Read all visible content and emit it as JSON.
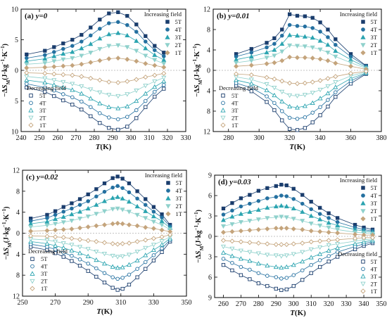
{
  "figure": {
    "x_axis_label": "T(K)",
    "y_axis_label": "−ΔS_M(J·kg⁻¹·K⁻¹)"
  },
  "colors": {
    "5T": "#1a3d6d",
    "4T": "#2470a0",
    "3T": "#2ba4b0",
    "2T": "#8fd1cc",
    "1T": "#c4a47c",
    "frame": "#000000",
    "zero_line": "#b0b0b0"
  },
  "chart_data": [
    {
      "panel": "(a)",
      "y_value": "y=0",
      "type": "scatter",
      "xlabel": "T(K)",
      "ylabel": "−ΔS_M(J·kg⁻¹·K⁻¹)",
      "xlim": [
        240,
        330
      ],
      "ylim_top": 10,
      "ylim_bottom": 10,
      "xticks": [
        240,
        250,
        260,
        270,
        280,
        290,
        300,
        310,
        320,
        330
      ],
      "yticks_top": [
        5,
        10
      ],
      "yticks_bottom": [
        0,
        5,
        10
      ],
      "increasing_legend_title": "Increasing field",
      "decreasing_legend_title": "Decreasing field",
      "legend_labels": [
        "5T",
        "4T",
        "3T",
        "2T",
        "1T"
      ],
      "increasing_x": [
        243,
        253,
        258,
        263,
        268,
        273,
        278,
        283,
        288,
        293,
        298,
        303,
        308,
        313,
        318
      ],
      "increasing": [
        {
          "name": "5T",
          "values": [
            2.6,
            3.2,
            3.8,
            4.4,
            5.0,
            5.8,
            7.0,
            8.3,
            9.3,
            9.5,
            8.9,
            7.5,
            5.6,
            4.0,
            2.9
          ]
        },
        {
          "name": "4T",
          "values": [
            2.0,
            2.5,
            3.0,
            3.5,
            4.0,
            4.7,
            5.7,
            6.8,
            7.7,
            7.9,
            7.4,
            6.3,
            4.7,
            3.3,
            2.3
          ]
        },
        {
          "name": "3T",
          "values": [
            1.5,
            1.9,
            2.3,
            2.7,
            3.0,
            3.6,
            4.3,
            5.2,
            5.9,
            6.1,
            5.7,
            4.8,
            3.6,
            2.5,
            1.7
          ]
        },
        {
          "name": "2T",
          "values": [
            1.0,
            1.2,
            1.5,
            1.8,
            2.0,
            2.4,
            2.9,
            3.5,
            4.0,
            4.1,
            3.8,
            3.2,
            2.4,
            1.7,
            1.1
          ]
        },
        {
          "name": "1T",
          "values": [
            0.4,
            0.5,
            0.6,
            0.7,
            0.8,
            1.0,
            1.3,
            1.6,
            1.9,
            2.0,
            1.8,
            1.5,
            1.1,
            0.8,
            0.5
          ]
        }
      ],
      "decreasing_x": [
        243,
        253,
        258,
        263,
        268,
        273,
        278,
        283,
        288,
        293,
        298,
        303,
        308,
        313,
        318
      ],
      "decreasing": [
        {
          "name": "5T",
          "values": [
            -2.8,
            -3.5,
            -4.2,
            -4.9,
            -5.6,
            -6.4,
            -7.5,
            -8.6,
            -9.4,
            -9.7,
            -9.2,
            -7.8,
            -6.0,
            -4.3,
            -3.0
          ]
        },
        {
          "name": "4T",
          "values": [
            -2.2,
            -2.8,
            -3.3,
            -3.9,
            -4.4,
            -5.1,
            -6.0,
            -7.0,
            -7.7,
            -8.0,
            -7.6,
            -6.5,
            -5.0,
            -3.5,
            -2.4
          ]
        },
        {
          "name": "3T",
          "values": [
            -1.6,
            -2.0,
            -2.4,
            -2.8,
            -3.2,
            -3.8,
            -4.6,
            -5.4,
            -6.0,
            -6.2,
            -5.9,
            -5.0,
            -3.8,
            -2.7,
            -1.8
          ]
        },
        {
          "name": "2T",
          "values": [
            -1.0,
            -1.3,
            -1.6,
            -1.9,
            -2.2,
            -2.6,
            -3.1,
            -3.6,
            -4.0,
            -4.2,
            -3.9,
            -3.3,
            -2.5,
            -1.8,
            -1.2
          ]
        },
        {
          "name": "1T",
          "values": [
            -0.4,
            -0.5,
            -0.6,
            -0.7,
            -0.8,
            -1.0,
            -1.3,
            -1.6,
            -1.9,
            -2.0,
            -1.8,
            -1.5,
            -1.1,
            -0.8,
            -0.5
          ]
        }
      ]
    },
    {
      "panel": "(b)",
      "y_value": "y=0.01",
      "type": "scatter",
      "xlabel": "T(K)",
      "ylabel": "−ΔS_M(J·kg⁻¹·K⁻¹)",
      "xlim": [
        270,
        380
      ],
      "ylim_top": 12,
      "ylim_bottom": 12,
      "xticks": [
        280,
        300,
        320,
        340,
        360,
        380
      ],
      "yticks_top": [
        4,
        8,
        12
      ],
      "yticks_bottom": [
        0,
        4,
        8,
        12
      ],
      "increasing_legend_title": "Increasing field",
      "decreasing_legend_title": "Decreasing field",
      "legend_labels": [
        "5T",
        "4T",
        "3T",
        "2T",
        "1T"
      ],
      "increasing_x": [
        285,
        295,
        305,
        310,
        315,
        320,
        325,
        330,
        335,
        340,
        345,
        350,
        360,
        370
      ],
      "increasing": [
        {
          "name": "5T",
          "values": [
            3.2,
            4.2,
            5.4,
            6.3,
            8.0,
            11.0,
            10.7,
            10.6,
            10.3,
            9.4,
            8.0,
            6.1,
            3.2,
            0.9
          ]
        },
        {
          "name": "4T",
          "values": [
            2.7,
            3.5,
            4.5,
            5.2,
            6.8,
            8.9,
            8.7,
            8.6,
            8.3,
            7.6,
            6.5,
            5.0,
            2.7,
            0.8
          ]
        },
        {
          "name": "3T",
          "values": [
            2.1,
            2.7,
            3.5,
            4.0,
            5.2,
            6.9,
            6.8,
            6.6,
            6.4,
            5.8,
            5.0,
            3.8,
            2.1,
            0.6
          ]
        },
        {
          "name": "2T",
          "values": [
            1.5,
            1.9,
            2.5,
            2.9,
            3.7,
            4.9,
            4.8,
            4.7,
            4.5,
            4.1,
            3.5,
            2.7,
            1.5,
            0.4
          ]
        },
        {
          "name": "1T",
          "values": [
            0.8,
            1.0,
            1.3,
            1.5,
            1.9,
            2.6,
            2.5,
            2.5,
            2.4,
            2.2,
            1.9,
            1.4,
            0.8,
            0.2
          ]
        }
      ],
      "decreasing_x": [
        285,
        295,
        305,
        310,
        315,
        320,
        325,
        330,
        335,
        340,
        345,
        350,
        360,
        370
      ],
      "decreasing": [
        {
          "name": "5T",
          "values": [
            -3.0,
            -4.1,
            -6.2,
            -7.8,
            -9.8,
            -11.5,
            -11.7,
            -11.3,
            -10.2,
            -8.8,
            -7.1,
            -5.2,
            -2.6,
            -0.7
          ]
        },
        {
          "name": "4T",
          "values": [
            -2.5,
            -3.4,
            -5.1,
            -6.4,
            -8.0,
            -9.3,
            -9.5,
            -9.2,
            -8.3,
            -7.2,
            -5.8,
            -4.3,
            -2.1,
            -0.6
          ]
        },
        {
          "name": "3T",
          "values": [
            -1.9,
            -2.6,
            -3.9,
            -4.9,
            -6.1,
            -7.1,
            -7.3,
            -7.0,
            -6.4,
            -5.5,
            -4.5,
            -3.3,
            -1.6,
            -0.5
          ]
        },
        {
          "name": "2T",
          "values": [
            -1.3,
            -1.8,
            -2.7,
            -3.4,
            -4.2,
            -4.9,
            -5.0,
            -4.8,
            -4.4,
            -3.8,
            -3.1,
            -2.3,
            -1.1,
            -0.3
          ]
        },
        {
          "name": "1T",
          "values": [
            -0.7,
            -0.9,
            -1.4,
            -1.7,
            -2.1,
            -2.5,
            -2.6,
            -2.5,
            -2.3,
            -2.0,
            -1.6,
            -1.2,
            -0.6,
            -0.2
          ]
        }
      ]
    },
    {
      "panel": "(c)",
      "y_value": "y=0.02",
      "type": "scatter",
      "xlabel": "T(K)",
      "ylabel": "−ΔS_M(J·kg⁻¹·K⁻¹)",
      "xlim": [
        250,
        350
      ],
      "ylim_top": 12,
      "ylim_bottom": 12,
      "xticks": [
        250,
        270,
        290,
        310,
        330,
        350
      ],
      "yticks_top": [
        4,
        8,
        12
      ],
      "yticks_bottom": [
        0,
        4,
        8,
        12
      ],
      "increasing_legend_title": "Increasing field",
      "decreasing_legend_title": "Decreasing field",
      "legend_labels": [
        "5T",
        "4T",
        "3T",
        "2T",
        "1T"
      ],
      "increasing_x": [
        255,
        265,
        270,
        275,
        280,
        285,
        290,
        295,
        300,
        305,
        308,
        311,
        315,
        320,
        325,
        330,
        335,
        340
      ],
      "increasing": [
        {
          "name": "5T",
          "values": [
            2.8,
            3.5,
            4.2,
            5.0,
            5.7,
            6.5,
            7.4,
            8.4,
            9.5,
            10.5,
            10.8,
            10.4,
            9.5,
            8.0,
            6.5,
            5.0,
            3.6,
            1.6
          ]
        },
        {
          "name": "4T",
          "values": [
            2.3,
            2.9,
            3.5,
            4.1,
            4.7,
            5.4,
            6.1,
            7.0,
            7.9,
            8.7,
            9.0,
            8.6,
            7.8,
            6.6,
            5.4,
            4.1,
            3.0,
            1.3
          ]
        },
        {
          "name": "3T",
          "values": [
            1.8,
            2.2,
            2.7,
            3.1,
            3.6,
            4.1,
            4.7,
            5.4,
            6.1,
            6.7,
            6.9,
            6.6,
            6.0,
            5.1,
            4.2,
            3.2,
            2.3,
            1.0
          ]
        },
        {
          "name": "2T",
          "values": [
            1.2,
            1.5,
            1.8,
            2.1,
            2.4,
            2.8,
            3.2,
            3.7,
            4.2,
            4.6,
            4.7,
            4.5,
            4.1,
            3.5,
            2.9,
            2.2,
            1.6,
            0.7
          ]
        },
        {
          "name": "1T",
          "values": [
            0.4,
            0.5,
            0.6,
            0.7,
            0.8,
            1.0,
            1.2,
            1.4,
            1.6,
            1.8,
            1.9,
            1.8,
            1.6,
            1.4,
            1.1,
            0.9,
            0.6,
            0.3
          ]
        }
      ],
      "decreasing_x": [
        255,
        265,
        270,
        275,
        280,
        285,
        290,
        295,
        300,
        305,
        308,
        311,
        315,
        320,
        325,
        330,
        335,
        340
      ],
      "decreasing": [
        {
          "name": "5T",
          "values": [
            -2.6,
            -3.2,
            -3.8,
            -4.5,
            -5.3,
            -6.2,
            -7.2,
            -8.3,
            -9.4,
            -10.4,
            -10.8,
            -10.6,
            -9.8,
            -8.4,
            -6.8,
            -5.2,
            -3.6,
            -1.6
          ]
        },
        {
          "name": "4T",
          "values": [
            -2.1,
            -2.6,
            -3.1,
            -3.7,
            -4.3,
            -5.0,
            -5.8,
            -6.7,
            -7.6,
            -8.4,
            -8.7,
            -8.5,
            -7.9,
            -6.8,
            -5.5,
            -4.2,
            -2.9,
            -1.3
          ]
        },
        {
          "name": "3T",
          "values": [
            -1.6,
            -2.0,
            -2.4,
            -2.8,
            -3.3,
            -3.8,
            -4.4,
            -5.1,
            -5.8,
            -6.4,
            -6.6,
            -6.5,
            -6.0,
            -5.2,
            -4.2,
            -3.2,
            -2.2,
            -1.0
          ]
        },
        {
          "name": "2T",
          "values": [
            -1.1,
            -1.3,
            -1.6,
            -1.9,
            -2.2,
            -2.6,
            -3.0,
            -3.5,
            -3.9,
            -4.3,
            -4.5,
            -4.4,
            -4.1,
            -3.5,
            -2.8,
            -2.2,
            -1.5,
            -0.7
          ]
        },
        {
          "name": "1T",
          "values": [
            -0.5,
            -0.6,
            -0.7,
            -0.8,
            -1.0,
            -1.2,
            -1.4,
            -1.6,
            -1.8,
            -2.0,
            -2.1,
            -2.0,
            -1.9,
            -1.6,
            -1.3,
            -1.0,
            -0.7,
            -0.3
          ]
        }
      ]
    },
    {
      "panel": "(d)",
      "y_value": "y=0.03",
      "type": "scatter",
      "xlabel": "T(K)",
      "ylabel": "−ΔS_M(J·kg⁻¹·K⁻¹)",
      "xlim": [
        255,
        350
      ],
      "ylim_top": 9,
      "ylim_bottom": 9,
      "xticks": [
        260,
        270,
        280,
        290,
        300,
        310,
        320,
        330,
        340,
        350
      ],
      "yticks_top": [
        3,
        6,
        9
      ],
      "yticks_bottom": [
        0,
        3,
        6,
        9
      ],
      "increasing_legend_title": "Increasing field",
      "decreasing_legend_title": "Decreasing field",
      "legend_labels": [
        "5T",
        "4T",
        "3T",
        "2T",
        "1T"
      ],
      "increasing_x": [
        260,
        265,
        270,
        275,
        280,
        285,
        290,
        293,
        296,
        300,
        305,
        310,
        315,
        320,
        325,
        335,
        340,
        345
      ],
      "increasing": [
        {
          "name": "5T",
          "values": [
            4.1,
            4.9,
            5.6,
            6.1,
            6.7,
            7.1,
            7.4,
            7.6,
            7.5,
            7.0,
            6.1,
            5.1,
            4.2,
            3.4,
            2.7,
            1.7,
            1.3,
            1.0
          ]
        },
        {
          "name": "4T",
          "values": [
            3.2,
            3.8,
            4.4,
            4.8,
            5.2,
            5.6,
            5.8,
            6.0,
            5.9,
            5.5,
            4.8,
            4.0,
            3.3,
            2.7,
            2.1,
            1.3,
            1.0,
            0.8
          ]
        },
        {
          "name": "3T",
          "values": [
            2.4,
            2.9,
            3.3,
            3.6,
            3.9,
            4.2,
            4.4,
            4.5,
            4.4,
            4.1,
            3.6,
            3.0,
            2.5,
            2.0,
            1.6,
            1.0,
            0.8,
            0.6
          ]
        },
        {
          "name": "2T",
          "values": [
            1.5,
            1.8,
            2.1,
            2.3,
            2.5,
            2.7,
            2.8,
            2.9,
            2.8,
            2.6,
            2.3,
            1.9,
            1.6,
            1.3,
            1.0,
            0.6,
            0.5,
            0.4
          ]
        },
        {
          "name": "1T",
          "values": [
            0.6,
            0.7,
            0.8,
            0.9,
            1.0,
            1.1,
            1.2,
            1.2,
            1.2,
            1.1,
            1.0,
            0.8,
            0.7,
            0.6,
            0.5,
            0.3,
            0.2,
            0.2
          ]
        }
      ],
      "decreasing_x": [
        260,
        265,
        270,
        275,
        280,
        285,
        290,
        293,
        296,
        300,
        305,
        310,
        315,
        320,
        325,
        335,
        340,
        345
      ],
      "decreasing": [
        {
          "name": "5T",
          "values": [
            -4.2,
            -5.0,
            -5.7,
            -6.3,
            -6.9,
            -7.3,
            -7.7,
            -7.9,
            -7.8,
            -7.3,
            -6.4,
            -5.4,
            -4.5,
            -3.7,
            -3.0,
            -1.9,
            -1.4,
            -1.0
          ]
        },
        {
          "name": "4T",
          "values": [
            -3.3,
            -3.9,
            -4.5,
            -4.9,
            -5.4,
            -5.8,
            -6.0,
            -6.2,
            -6.1,
            -5.7,
            -5.0,
            -4.2,
            -3.5,
            -2.9,
            -2.3,
            -1.5,
            -1.1,
            -0.8
          ]
        },
        {
          "name": "3T",
          "values": [
            -2.4,
            -2.9,
            -3.3,
            -3.6,
            -4.0,
            -4.3,
            -4.5,
            -4.6,
            -4.5,
            -4.2,
            -3.7,
            -3.1,
            -2.6,
            -2.1,
            -1.7,
            -1.1,
            -0.8,
            -0.6
          ]
        },
        {
          "name": "2T",
          "values": [
            -1.5,
            -1.8,
            -2.1,
            -2.3,
            -2.5,
            -2.7,
            -2.8,
            -2.9,
            -2.8,
            -2.6,
            -2.3,
            -1.9,
            -1.6,
            -1.3,
            -1.1,
            -0.7,
            -0.5,
            -0.4
          ]
        },
        {
          "name": "1T",
          "values": [
            -0.6,
            -0.7,
            -0.8,
            -0.9,
            -1.0,
            -1.1,
            -1.2,
            -1.2,
            -1.2,
            -1.1,
            -1.0,
            -0.8,
            -0.7,
            -0.6,
            -0.5,
            -0.3,
            -0.2,
            -0.2
          ]
        }
      ]
    }
  ]
}
